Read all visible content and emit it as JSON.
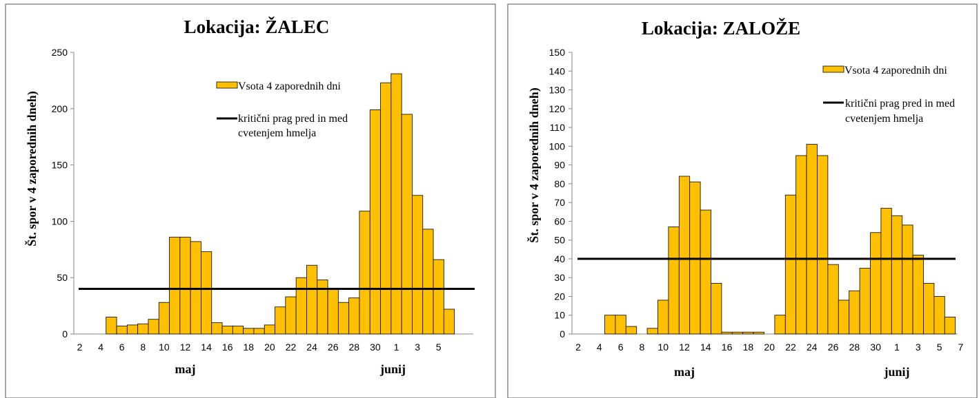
{
  "chart_data": [
    {
      "type": "bar",
      "title": "Lokacija: ŽALEC",
      "ylabel": "Št. spor v 4 zaporednih dneh)",
      "xlabel": "",
      "ylim": [
        0,
        250
      ],
      "yticks": [
        0,
        50,
        100,
        150,
        200,
        250
      ],
      "xtick_labels": [
        "2",
        "4",
        "6",
        "8",
        "10",
        "12",
        "14",
        "16",
        "18",
        "20",
        "22",
        "24",
        "26",
        "28",
        "30",
        "1",
        "3",
        "5"
      ],
      "xmonths": [
        {
          "label": "maj",
          "under": "12"
        },
        {
          "label": "junij",
          "under": "1"
        }
      ],
      "categories": [
        "2",
        "3",
        "4",
        "5",
        "6",
        "7",
        "8",
        "9",
        "10",
        "11",
        "12",
        "13",
        "14",
        "15",
        "16",
        "17",
        "18",
        "19",
        "20",
        "21",
        "22",
        "23",
        "24",
        "25",
        "26",
        "27",
        "28",
        "29",
        "30",
        "31",
        "1",
        "2",
        "3",
        "4",
        "5",
        "6",
        "7"
      ],
      "series": [
        {
          "name": "Vsota 4 zaporednih dni",
          "kind": "bar",
          "color": "#FFC000",
          "values": [
            0,
            0,
            0,
            15,
            7,
            8,
            9,
            13,
            28,
            86,
            86,
            82,
            73,
            10,
            7,
            7,
            5,
            5,
            8,
            24,
            33,
            50,
            61,
            48,
            40,
            28,
            32,
            109,
            199,
            223,
            231,
            195,
            123,
            93,
            66,
            22,
            0
          ]
        },
        {
          "name": "kritični prag pred in med cvetenjem hmelja",
          "kind": "line",
          "color": "#000000",
          "value": 40
        }
      ],
      "legend": {
        "placement": "top-right",
        "bar_label": "Vsota 4 zaporednih dni",
        "line_label_1": "kritični prag pred in med",
        "line_label_2": "cvetenjem  hmelja"
      },
      "grid": false
    },
    {
      "type": "bar",
      "title": "Lokacija: ZALOŽE",
      "ylabel": "Št. spor v 4 zaporednih dneh)",
      "xlabel": "",
      "ylim": [
        0,
        150
      ],
      "yticks": [
        0,
        10,
        20,
        30,
        40,
        50,
        60,
        70,
        80,
        90,
        100,
        110,
        120,
        130,
        140,
        150
      ],
      "xtick_labels": [
        "2",
        "4",
        "6",
        "8",
        "10",
        "12",
        "14",
        "16",
        "18",
        "20",
        "22",
        "24",
        "26",
        "28",
        "30",
        "1",
        "3",
        "5",
        "7"
      ],
      "xmonths": [
        {
          "label": "maj",
          "under": "12"
        },
        {
          "label": "junij",
          "under": "1"
        }
      ],
      "categories": [
        "2",
        "3",
        "4",
        "5",
        "6",
        "7",
        "8",
        "9",
        "10",
        "11",
        "12",
        "13",
        "14",
        "15",
        "16",
        "17",
        "18",
        "19",
        "20",
        "21",
        "22",
        "23",
        "24",
        "25",
        "26",
        "27",
        "28",
        "29",
        "30",
        "31",
        "1",
        "2",
        "3",
        "4",
        "5",
        "6",
        "7"
      ],
      "series": [
        {
          "name": "Vsota 4 zaporednih dni",
          "kind": "bar",
          "color": "#FFC000",
          "values": [
            0,
            0,
            0,
            10,
            10,
            4,
            0,
            3,
            18,
            57,
            84,
            81,
            66,
            27,
            1,
            1,
            1,
            1,
            0,
            10,
            74,
            95,
            101,
            95,
            37,
            18,
            23,
            35,
            54,
            67,
            63,
            58,
            42,
            27,
            20,
            9,
            0
          ]
        },
        {
          "name": "kritični prag pred in med cvetenjem hmelja",
          "kind": "line",
          "color": "#000000",
          "value": 40
        }
      ],
      "legend": {
        "placement": "top-right",
        "bar_label": "Vsota 4 zaporednih dni",
        "line_label_1": "kritični prag pred in med",
        "line_label_2": "cvetenjem  hmelja"
      },
      "grid": false
    }
  ]
}
